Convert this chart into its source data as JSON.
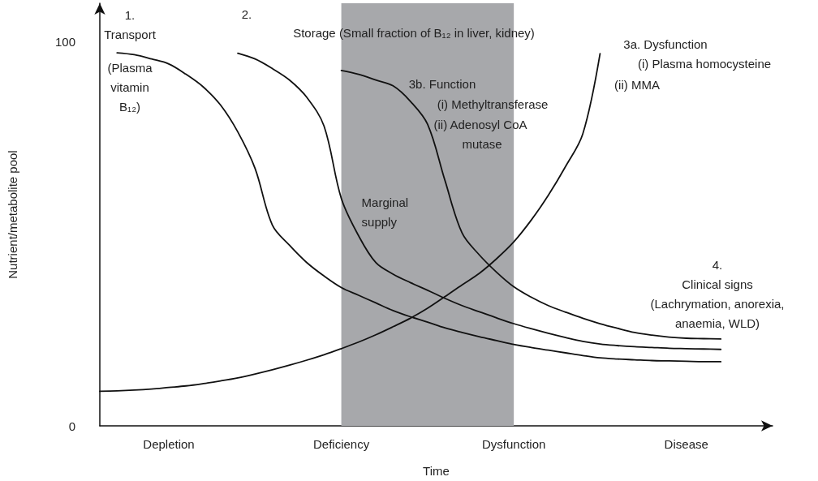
{
  "chart_data": {
    "type": "line",
    "xlabel": "Time",
    "ylabel": "Nutrient/metabolite pool",
    "categories": [
      null,
      null,
      null,
      null,
      "Depletion",
      null,
      null,
      null,
      null,
      null,
      null,
      null,
      null,
      null,
      "Deficiency",
      null,
      null,
      null,
      null,
      null,
      null,
      null,
      null,
      null,
      "Dysfunction",
      null,
      null,
      null,
      null,
      null,
      null,
      null,
      null,
      null,
      "Disease",
      null,
      null,
      null,
      null,
      null
    ],
    "ylim": [
      0,
      110
    ],
    "yticks": [
      0,
      100
    ],
    "bands": [
      {
        "axis": "x",
        "from": "Deficiency",
        "to": "Dysfunction",
        "label": "Marginal supply",
        "color": "#a7a8ab"
      }
    ],
    "grid": false,
    "marker": "none",
    "line_style": "solid",
    "series": [
      {
        "color": "#111111",
        "values": [
          null,
          97.1,
          96.6,
          95.5,
          94.2,
          91.5,
          88.2,
          83.5,
          76.5,
          67,
          52.3,
          47,
          42.5,
          39,
          36,
          34,
          32,
          30,
          28.4,
          27,
          25.5,
          24.3,
          23.2,
          22.2,
          21.2,
          20.4,
          19.7,
          19,
          18.3,
          17.7,
          17.4,
          17.2,
          17,
          16.9,
          16.8,
          16.7,
          16.7,
          null,
          null,
          null
        ]
      },
      {
        "color": "#111111",
        "values": [
          null,
          null,
          null,
          null,
          null,
          null,
          null,
          null,
          97,
          95.5,
          93,
          90,
          85.5,
          78,
          59.2,
          49.5,
          42.5,
          39.5,
          37.3,
          35.3,
          33.2,
          31.3,
          29.7,
          28.1,
          26.6,
          25.3,
          24.1,
          23,
          22,
          21.3,
          20.9,
          20.6,
          20.4,
          20.2,
          20.1,
          20,
          19.9,
          null,
          null,
          null
        ]
      },
      {
        "color": "#111111",
        "values": [
          null,
          null,
          null,
          null,
          null,
          null,
          null,
          null,
          null,
          null,
          null,
          null,
          null,
          null,
          92.5,
          91.5,
          90,
          88.5,
          84.5,
          78.5,
          64,
          50.2,
          44.5,
          40,
          36.2,
          33.5,
          31.3,
          29.6,
          28,
          26.6,
          25.4,
          24.3,
          23.6,
          23.1,
          22.8,
          22.7,
          22.6,
          null,
          null,
          null
        ]
      },
      {
        "color": "#111111",
        "values": [
          9,
          9.1,
          9.3,
          9.6,
          10,
          10.4,
          11,
          11.7,
          12.5,
          13.5,
          14.6,
          15.8,
          17.1,
          18.5,
          20.1,
          21.8,
          23.7,
          25.8,
          28,
          30.6,
          33.6,
          36.7,
          39.7,
          43.5,
          47.9,
          53.5,
          60,
          67.5,
          76,
          96.9,
          null,
          null,
          null,
          null,
          null,
          null,
          null,
          null,
          null,
          null
        ]
      }
    ],
    "annotations": [
      "1.\nTransport",
      "(Plasma\nvitamin\nB₁₂)",
      "2.",
      "Storage (Small fraction of B₁₂ in liver, kidney)",
      "3b. Function",
      "(i) Methyltransferase",
      "(ii) Adenosyl CoA",
      "mutase",
      "3a. Dysfunction",
      "(i) Plasma homocysteine",
      "(ii) MMA",
      "4.\nClinical signs\n(Lachrymation, anorexia,\nanaemia, WLD)"
    ]
  }
}
